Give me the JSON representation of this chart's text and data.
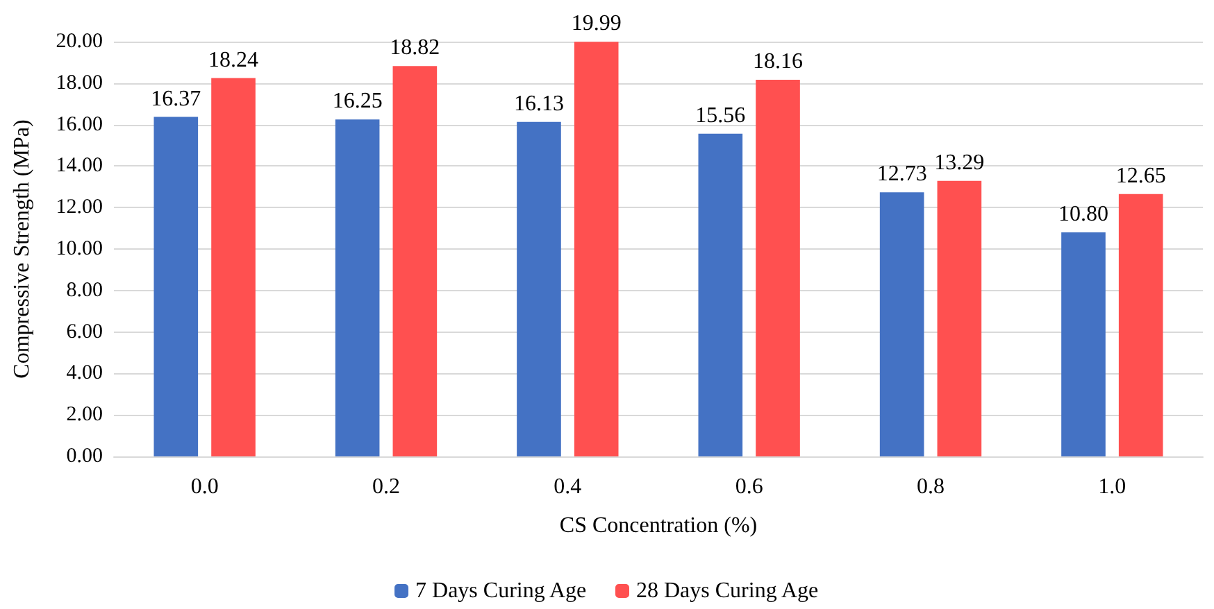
{
  "chart_data": {
    "type": "bar",
    "xlabel": "CS Concentration (%)",
    "ylabel": "Compressive Strength (MPa)",
    "categories": [
      "0.0",
      "0.2",
      "0.4",
      "0.6",
      "0.8",
      "1.0"
    ],
    "series": [
      {
        "name": "7 Days Curing Age",
        "color": "#4472c4",
        "values": [
          16.37,
          16.25,
          16.13,
          15.56,
          12.73,
          10.8
        ],
        "value_labels": [
          "16.37",
          "16.25",
          "16.13",
          "15.56",
          "12.73",
          "10.80"
        ]
      },
      {
        "name": "28 Days Curing Age",
        "color": "#ff5050",
        "values": [
          18.24,
          18.82,
          19.99,
          18.16,
          13.29,
          12.65
        ],
        "value_labels": [
          "18.24",
          "18.82",
          "19.99",
          "18.16",
          "13.29",
          "12.65"
        ]
      }
    ],
    "ylim": [
      0,
      20
    ],
    "yticks": [
      {
        "value": 0,
        "label": "0.00"
      },
      {
        "value": 2,
        "label": "2.00"
      },
      {
        "value": 4,
        "label": "4.00"
      },
      {
        "value": 6,
        "label": "6.00"
      },
      {
        "value": 8,
        "label": "8.00"
      },
      {
        "value": 10,
        "label": "10.00"
      },
      {
        "value": 12,
        "label": "12.00"
      },
      {
        "value": 14,
        "label": "14.00"
      },
      {
        "value": 16,
        "label": "16.00"
      },
      {
        "value": 18,
        "label": "18.00"
      },
      {
        "value": 20,
        "label": "20.00"
      }
    ],
    "grid": "y",
    "legend": "bottom"
  }
}
